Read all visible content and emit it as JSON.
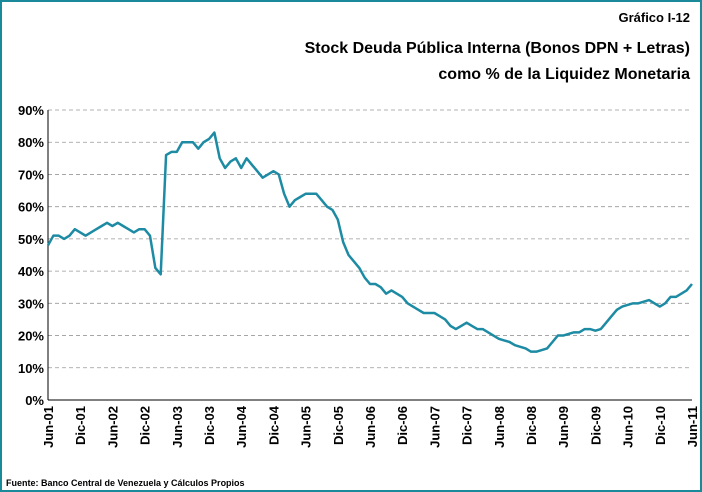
{
  "chart_data": {
    "type": "line",
    "label": "Gráfico I-12",
    "title": "Stock Deuda Pública Interna (Bonos DPN + Letras)",
    "subtitle": "como % de la Liquidez Monetaria",
    "source": "Fuente: Banco Central de Venezuela y Cálculos Propios",
    "categories": [
      "Jun-01",
      null,
      null,
      null,
      null,
      null,
      "Dic-01",
      null,
      null,
      null,
      null,
      null,
      "Jun-02",
      null,
      null,
      null,
      null,
      null,
      "Dic-02",
      null,
      null,
      null,
      null,
      null,
      "Jun-03",
      null,
      null,
      null,
      null,
      null,
      "Dic-03",
      null,
      null,
      null,
      null,
      null,
      "Jun-04",
      null,
      null,
      null,
      null,
      null,
      "Dic-04",
      null,
      null,
      null,
      null,
      null,
      "Jun-05",
      null,
      null,
      null,
      null,
      null,
      "Dic-05",
      null,
      null,
      null,
      null,
      null,
      "Jun-06",
      null,
      null,
      null,
      null,
      null,
      "Dic-06",
      null,
      null,
      null,
      null,
      null,
      "Jun-07",
      null,
      null,
      null,
      null,
      null,
      "Dic-07",
      null,
      null,
      null,
      null,
      null,
      "Jun-08",
      null,
      null,
      null,
      null,
      null,
      "Dic-08",
      null,
      null,
      null,
      null,
      null,
      "Jun-09",
      null,
      null,
      null,
      null,
      null,
      "Dic-09",
      null,
      null,
      null,
      null,
      null,
      "Jun-10",
      null,
      null,
      null,
      null,
      null,
      "Dic-10",
      null,
      null,
      null,
      null,
      null,
      "Jun-11"
    ],
    "values": [
      48,
      51,
      51,
      50,
      51,
      53,
      52,
      51,
      52,
      53,
      54,
      55,
      54,
      55,
      54,
      53,
      52,
      53,
      53,
      51,
      41,
      39,
      76,
      77,
      77,
      80,
      80,
      80,
      78,
      80,
      81,
      83,
      75,
      72,
      74,
      75,
      72,
      75,
      73,
      71,
      69,
      70,
      71,
      70,
      64,
      60,
      62,
      63,
      64,
      64,
      64,
      62,
      60,
      59,
      56,
      49,
      45,
      43,
      41,
      38,
      36,
      36,
      35,
      33,
      34,
      33,
      32,
      30,
      29,
      28,
      27,
      27,
      27,
      26,
      25,
      23,
      22,
      23,
      24,
      23,
      22,
      22,
      21,
      20,
      19,
      18.5,
      18,
      17,
      16.5,
      16,
      15,
      15,
      15.5,
      16,
      18,
      20,
      20,
      20.5,
      21,
      21,
      22,
      22,
      21.5,
      22,
      24,
      26,
      28,
      29,
      29.5,
      30,
      30,
      30.5,
      31,
      30,
      29,
      30,
      32,
      32,
      33,
      34,
      36
    ],
    "color": "#1d8ba3",
    "ylim": [
      0,
      90
    ],
    "yticks": [
      {
        "value": 0,
        "label": "0%"
      },
      {
        "value": 10,
        "label": "10%"
      },
      {
        "value": 20,
        "label": "20%"
      },
      {
        "value": 30,
        "label": "30%"
      },
      {
        "value": 40,
        "label": "40%"
      },
      {
        "value": 50,
        "label": "50%"
      },
      {
        "value": 60,
        "label": "60%"
      },
      {
        "value": 70,
        "label": "70%"
      },
      {
        "value": 80,
        "label": "80%"
      },
      {
        "value": 90,
        "label": "90%"
      }
    ],
    "grid": true
  }
}
